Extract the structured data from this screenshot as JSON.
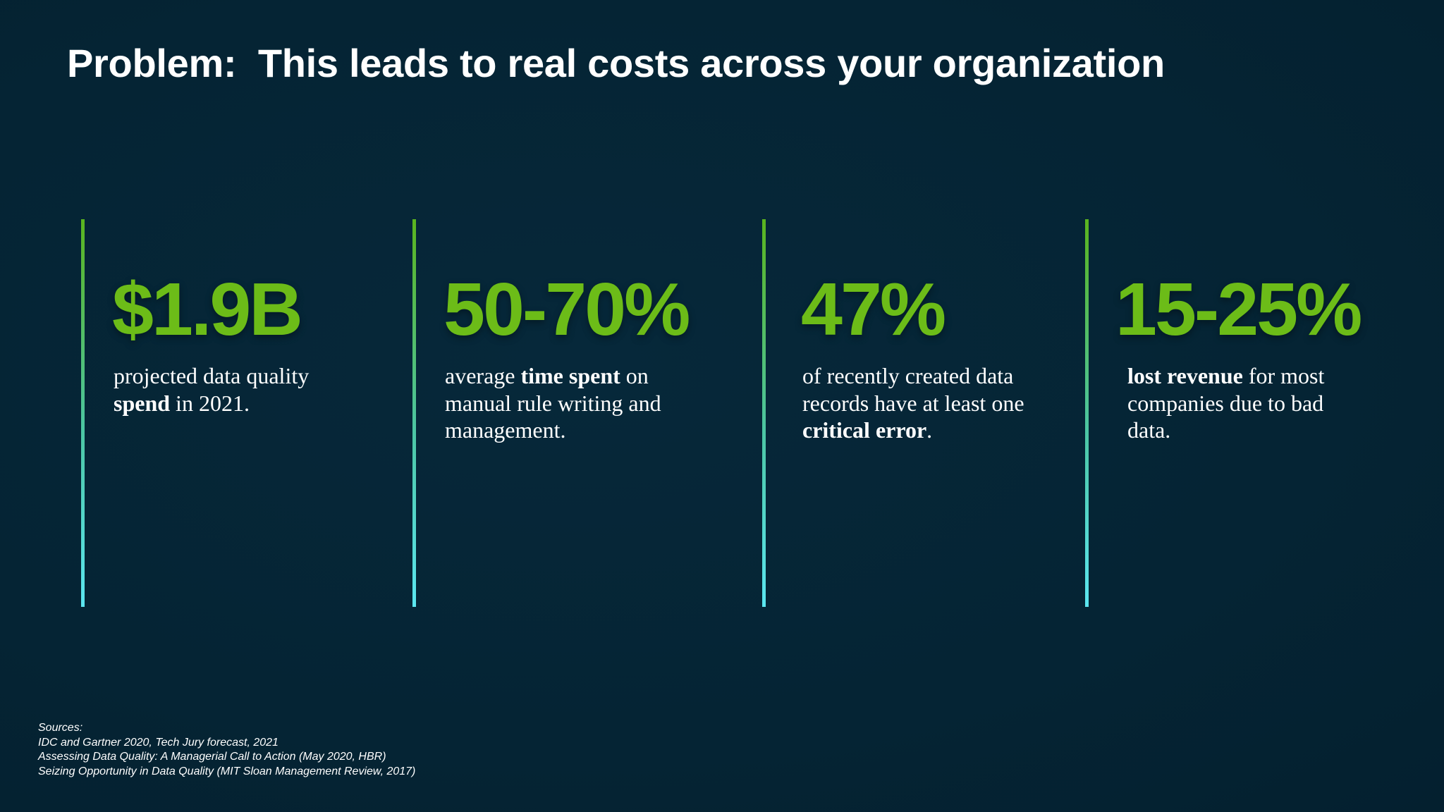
{
  "slide": {
    "title": "Problem:  This leads to real costs across your organization",
    "stats": [
      {
        "value": "$1.9B",
        "desc": [
          {
            "text": "projected data quality ",
            "bold": false
          },
          {
            "text": "spend",
            "bold": true
          },
          {
            "text": " in 2021.",
            "bold": false
          }
        ]
      },
      {
        "value": "50-70%",
        "desc": [
          {
            "text": "average ",
            "bold": false
          },
          {
            "text": "time spent",
            "bold": true
          },
          {
            "text": " on manual rule writing and management.",
            "bold": false
          }
        ]
      },
      {
        "value": "47%",
        "desc": [
          {
            "text": "of recently created data records have at least one ",
            "bold": false
          },
          {
            "text": "critical error",
            "bold": true
          },
          {
            "text": ".",
            "bold": false
          }
        ]
      },
      {
        "value": "15-25%",
        "desc": [
          {
            "text": "lost revenue",
            "bold": true
          },
          {
            "text": " for most companies due to bad data.",
            "bold": false
          }
        ]
      }
    ],
    "sources": {
      "heading": "Sources:",
      "items": [
        "IDC and Gartner 2020, Tech Jury forecast, 2021",
        "Assessing Data Quality: A Managerial Call to Action (May 2020, HBR)",
        "Seizing Opportunity in Data Quality (MIT Sloan Management Review, 2017)"
      ]
    },
    "colors": {
      "background": "#052434",
      "accent": "#6cbc18",
      "rule_top": "#5ab41e",
      "rule_bottom": "#5be6f0",
      "text": "#ffffff"
    }
  }
}
